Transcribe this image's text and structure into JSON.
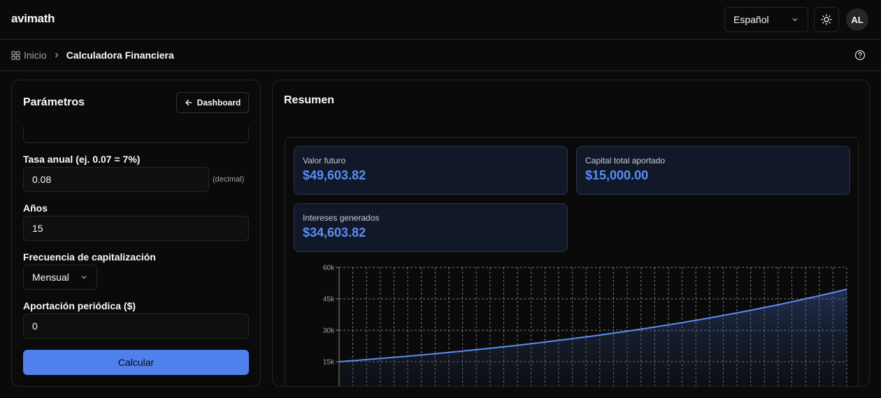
{
  "app": {
    "name": "avimath"
  },
  "header": {
    "language": "Español",
    "avatar_initials": "AL"
  },
  "breadcrumb": {
    "home": "Inicio",
    "current": "Calculadora Financiera"
  },
  "params": {
    "title": "Parámetros",
    "dashboard_label": "Dashboard",
    "rate_label": "Tasa anual (ej. 0.07 = 7%)",
    "rate_value": "0.08",
    "rate_hint": "(decimal)",
    "years_label": "Años",
    "years_value": "15",
    "freq_label": "Frecuencia de capitalización",
    "freq_value": "Mensual",
    "contrib_label": "Aportación periódica ($)",
    "contrib_value": "0",
    "calc_label": "Calcular"
  },
  "summary": {
    "title": "Resumen",
    "stats": [
      {
        "label": "Valor futuro",
        "value": "$49,603.82"
      },
      {
        "label": "Capital total aportado",
        "value": "$15,000.00"
      },
      {
        "label": "Intereses generados",
        "value": "$34,603.82"
      }
    ]
  },
  "colors": {
    "accent": "#5c8df5",
    "button": "#5080ec",
    "background": "#0a0a0a",
    "border": "#262626"
  },
  "chart_data": {
    "type": "area",
    "y_ticks": [
      "60k",
      "45k",
      "30k",
      "15k"
    ],
    "ylim": [
      15000,
      60000
    ],
    "grid": true,
    "x": [
      0,
      15
    ],
    "start_value": 15000,
    "end_value": 49603.82,
    "rate": 0.08
  }
}
